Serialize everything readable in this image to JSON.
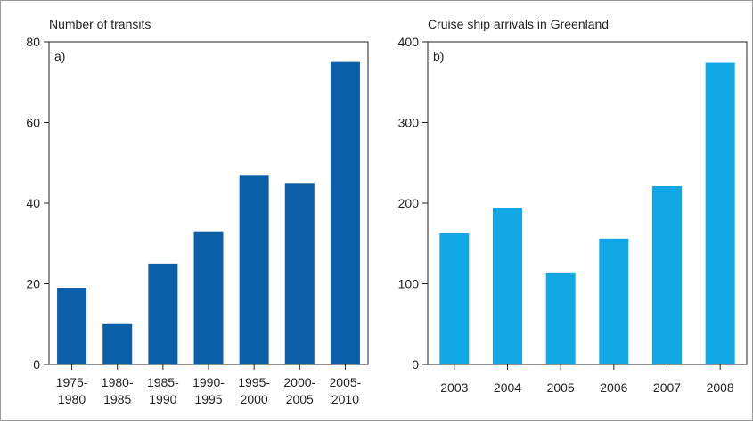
{
  "chart_data": [
    {
      "type": "bar",
      "title": "Number of transits",
      "panel_label": "a)",
      "categories": [
        [
          "1975-",
          "1980"
        ],
        [
          "1980-",
          "1985"
        ],
        [
          "1985-",
          "1990"
        ],
        [
          "1990-",
          "1995"
        ],
        [
          "1995-",
          "2000"
        ],
        [
          "2000-",
          "2005"
        ],
        [
          "2005-",
          "2010"
        ]
      ],
      "values": [
        19,
        10,
        25,
        33,
        47,
        45,
        75
      ],
      "ylim": [
        0,
        80
      ],
      "yticks": [
        0,
        20,
        40,
        60,
        80
      ],
      "xlabel": "",
      "ylabel": "",
      "color": "#0b5ea8",
      "grid": false
    },
    {
      "type": "bar",
      "title": "Cruise ship arrivals in Greenland",
      "panel_label": "b)",
      "categories": [
        "2003",
        "2004",
        "2005",
        "2006",
        "2007",
        "2008"
      ],
      "values": [
        163,
        194,
        114,
        156,
        221,
        374
      ],
      "ylim": [
        0,
        400
      ],
      "yticks": [
        0,
        100,
        200,
        300,
        400
      ],
      "xlabel": "",
      "ylabel": "",
      "color": "#12a8e6",
      "grid": false
    }
  ]
}
